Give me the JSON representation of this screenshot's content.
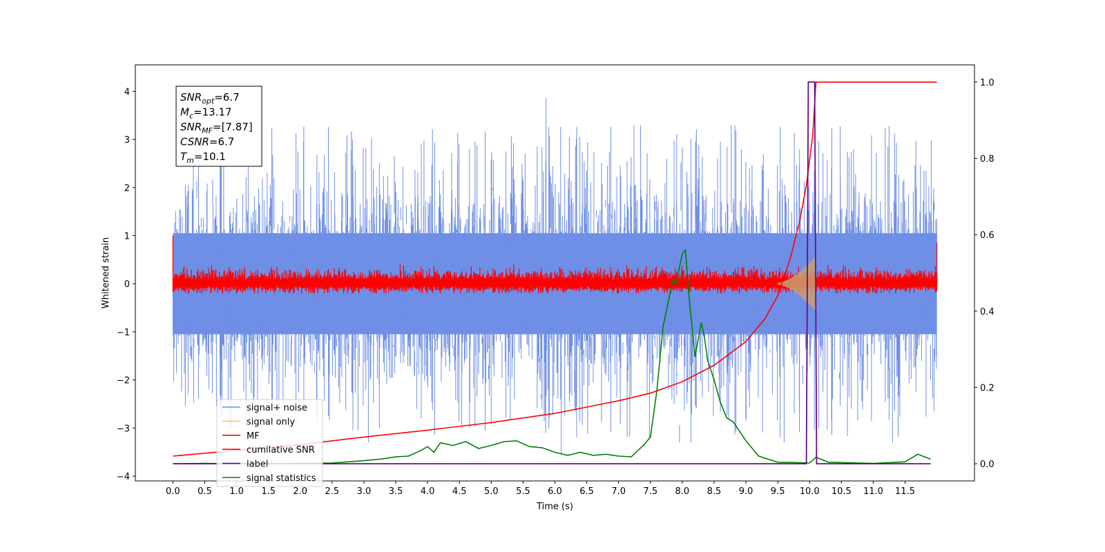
{
  "chart_data": {
    "type": "line",
    "xlabel": "Time (s)",
    "ylabel": "Whitened strain",
    "xlim": [
      -0.59,
      12.59
    ],
    "ylim": [
      -4.1,
      4.55
    ],
    "y2lim": [
      -0.045,
      1.045
    ],
    "x_ticks": [
      0.0,
      0.5,
      1.0,
      1.5,
      2.0,
      2.5,
      3.0,
      3.5,
      4.0,
      4.5,
      5.0,
      5.5,
      6.0,
      6.5,
      7.0,
      7.5,
      8.0,
      8.5,
      9.0,
      9.5,
      10.0,
      10.5,
      11.0,
      11.5
    ],
    "x_tick_labels": [
      "0.0",
      "0.5",
      "1.0",
      "1.5",
      "2.0",
      "2.5",
      "3.0",
      "3.5",
      "4.0",
      "4.5",
      "5.0",
      "5.5",
      "6.0",
      "6.5",
      "7.0",
      "7.5",
      "8.0",
      "8.5",
      "9.0",
      "9.5",
      "10.0",
      "10.5",
      "11.0",
      "11.5"
    ],
    "y_ticks": [
      -4,
      -3,
      -2,
      -1,
      0,
      1,
      2,
      3,
      4
    ],
    "y_tick_labels": [
      "−4",
      "−3",
      "−2",
      "−1",
      "0",
      "1",
      "2",
      "3",
      "4"
    ],
    "y2_ticks": [
      0.0,
      0.2,
      0.4,
      0.6,
      0.8,
      1.0
    ],
    "y2_tick_labels": [
      "0.0",
      "0.2",
      "0.4",
      "0.6",
      "0.8",
      "1.0"
    ],
    "legend_placement": "lower-left",
    "grid": false,
    "annotation": [
      {
        "sym": "SNR",
        "sub": "opt",
        "val": "=6.7"
      },
      {
        "sym": "M",
        "sub": "c",
        "val": "=13.17"
      },
      {
        "sym": "SNR",
        "sub": "MF",
        "val": "=[7.87]"
      },
      {
        "sym": "CSNR",
        "sub": "",
        "val": "=6.7"
      },
      {
        "sym": "T",
        "sub": "m",
        "val": "=10.1"
      }
    ],
    "series": [
      {
        "name": "signal+ noise",
        "axis": "left",
        "color": "#6f8fe6",
        "band": {
          "x_start": 0.0,
          "x_end": 12.0,
          "upper": 1.05,
          "lower": -1.05,
          "peak_max": 3.86,
          "peak_min": -3.55
        }
      },
      {
        "name": "signal only",
        "axis": "left",
        "color": "#f8c471",
        "chirp": {
          "x_start": 9.5,
          "x_end": 10.1,
          "amp_max": 0.55
        }
      },
      {
        "name": "MF",
        "axis": "left",
        "color": "#ff0000",
        "band": {
          "x_start": 0.0,
          "x_end": 12.0,
          "upper": 0.2,
          "lower": -0.15
        }
      },
      {
        "name": "cumilative SNR",
        "axis": "right",
        "color": "#ff0000",
        "x": [
          0.0,
          1.0,
          2.0,
          3.0,
          4.0,
          5.0,
          6.0,
          7.0,
          7.5,
          8.0,
          8.5,
          9.0,
          9.3,
          9.5,
          9.7,
          9.85,
          9.95,
          10.05,
          10.1,
          12.0
        ],
        "values": [
          0.02,
          0.035,
          0.05,
          0.07,
          0.088,
          0.108,
          0.132,
          0.165,
          0.185,
          0.215,
          0.258,
          0.32,
          0.38,
          0.44,
          0.54,
          0.64,
          0.73,
          0.86,
          1.0,
          1.0
        ]
      },
      {
        "name": "label",
        "axis": "right",
        "color": "#6a0a8a",
        "x": [
          0.0,
          9.95,
          9.98,
          10.0,
          10.05,
          10.08,
          10.11,
          11.0,
          11.9
        ],
        "values": [
          0.0,
          0.0,
          1.0,
          1.0,
          1.0,
          1.0,
          0.0,
          0.0,
          0.0
        ]
      },
      {
        "name": "signal statistics",
        "axis": "right",
        "color": "#008000",
        "x": [
          0.0,
          0.5,
          1.0,
          1.5,
          2.0,
          2.5,
          3.0,
          3.3,
          3.5,
          3.7,
          3.9,
          4.0,
          4.1,
          4.2,
          4.4,
          4.6,
          4.8,
          5.0,
          5.2,
          5.4,
          5.6,
          5.8,
          6.0,
          6.2,
          6.4,
          6.6,
          6.8,
          7.0,
          7.2,
          7.4,
          7.5,
          7.6,
          7.7,
          7.8,
          7.85,
          7.9,
          8.0,
          8.05,
          8.1,
          8.2,
          8.3,
          8.35,
          8.4,
          8.5,
          8.6,
          8.7,
          8.8,
          9.0,
          9.2,
          9.5,
          9.8,
          10.0,
          10.1,
          10.3,
          11.0,
          11.5,
          11.7,
          11.9
        ],
        "values": [
          0.0,
          0.001,
          0.0,
          0.0,
          0.001,
          0.002,
          0.008,
          0.013,
          0.018,
          0.02,
          0.035,
          0.045,
          0.03,
          0.055,
          0.048,
          0.058,
          0.04,
          0.048,
          0.058,
          0.06,
          0.045,
          0.042,
          0.03,
          0.022,
          0.03,
          0.022,
          0.025,
          0.02,
          0.018,
          0.05,
          0.07,
          0.19,
          0.36,
          0.44,
          0.48,
          0.47,
          0.55,
          0.56,
          0.45,
          0.28,
          0.37,
          0.33,
          0.27,
          0.22,
          0.16,
          0.12,
          0.11,
          0.06,
          0.02,
          0.004,
          0.003,
          0.002,
          0.017,
          0.004,
          0.001,
          0.005,
          0.025,
          0.012
        ]
      }
    ]
  }
}
